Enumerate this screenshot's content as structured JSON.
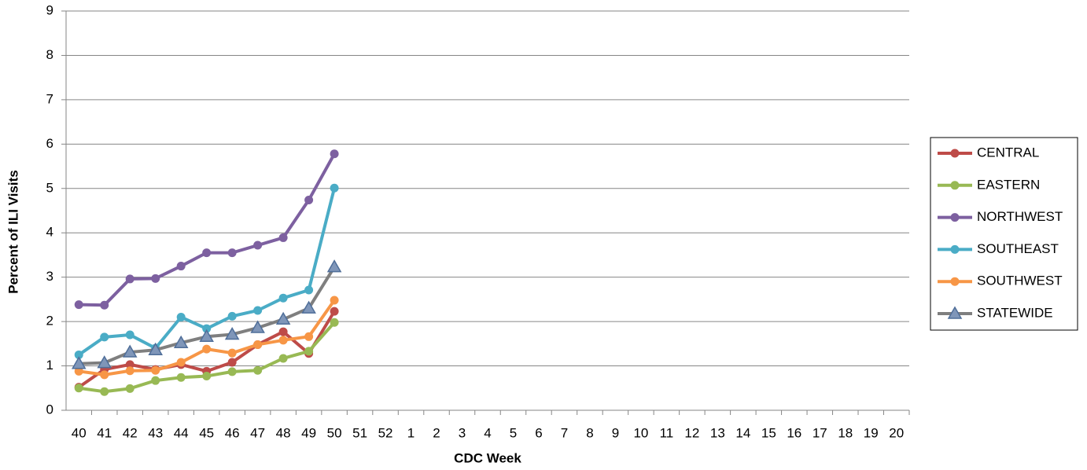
{
  "chart_data": {
    "type": "line",
    "x_label": "CDC Week",
    "y_label": "Percent of ILI Visits",
    "categories": [
      "40",
      "41",
      "42",
      "43",
      "44",
      "45",
      "46",
      "47",
      "48",
      "49",
      "50",
      "51",
      "52",
      "1",
      "2",
      "3",
      "4",
      "5",
      "6",
      "7",
      "8",
      "9",
      "10",
      "11",
      "12",
      "13",
      "14",
      "15",
      "16",
      "17",
      "18",
      "19",
      "20"
    ],
    "series": [
      {
        "name": "CENTRAL",
        "color": "#be4b48",
        "marker": "circle",
        "values": [
          0.52,
          0.92,
          1.03,
          0.92,
          1.03,
          0.88,
          1.08,
          1.48,
          1.77,
          1.28,
          2.23,
          null,
          null,
          null,
          null,
          null,
          null,
          null,
          null,
          null,
          null,
          null,
          null,
          null,
          null,
          null,
          null,
          null,
          null,
          null,
          null,
          null,
          null
        ]
      },
      {
        "name": "EASTERN",
        "color": "#98b954",
        "marker": "circle",
        "values": [
          0.5,
          0.42,
          0.49,
          0.67,
          0.74,
          0.77,
          0.87,
          0.9,
          1.17,
          1.33,
          1.98,
          null,
          null,
          null,
          null,
          null,
          null,
          null,
          null,
          null,
          null,
          null,
          null,
          null,
          null,
          null,
          null,
          null,
          null,
          null,
          null,
          null,
          null
        ]
      },
      {
        "name": "NORTHWEST",
        "color": "#7d60a0",
        "marker": "circle",
        "values": [
          2.38,
          2.37,
          2.96,
          2.97,
          3.25,
          3.55,
          3.55,
          3.72,
          3.89,
          4.74,
          5.78,
          null,
          null,
          null,
          null,
          null,
          null,
          null,
          null,
          null,
          null,
          null,
          null,
          null,
          null,
          null,
          null,
          null,
          null,
          null,
          null,
          null,
          null
        ]
      },
      {
        "name": "SOUTHEAST",
        "color": "#4aacc6",
        "marker": "circle",
        "values": [
          1.25,
          1.65,
          1.7,
          1.4,
          2.1,
          1.84,
          2.12,
          2.25,
          2.53,
          2.71,
          5.01,
          null,
          null,
          null,
          null,
          null,
          null,
          null,
          null,
          null,
          null,
          null,
          null,
          null,
          null,
          null,
          null,
          null,
          null,
          null,
          null,
          null,
          null
        ]
      },
      {
        "name": "SOUTHWEST",
        "color": "#f79646",
        "marker": "circle",
        "values": [
          0.88,
          0.8,
          0.89,
          0.9,
          1.08,
          1.38,
          1.29,
          1.48,
          1.58,
          1.66,
          2.48,
          null,
          null,
          null,
          null,
          null,
          null,
          null,
          null,
          null,
          null,
          null,
          null,
          null,
          null,
          null,
          null,
          null,
          null,
          null,
          null,
          null,
          null
        ]
      },
      {
        "name": "STATEWIDE",
        "color": "#7f7f7f",
        "marker": "triangle",
        "marker_color": "#7f96b9",
        "values": [
          1.05,
          1.07,
          1.31,
          1.36,
          1.52,
          1.66,
          1.71,
          1.86,
          2.05,
          2.3,
          3.23,
          null,
          null,
          null,
          null,
          null,
          null,
          null,
          null,
          null,
          null,
          null,
          null,
          null,
          null,
          null,
          null,
          null,
          null,
          null,
          null,
          null,
          null
        ]
      }
    ],
    "ylim": [
      0,
      9
    ],
    "yticks": [
      0,
      1,
      2,
      3,
      4,
      5,
      6,
      7,
      8,
      9
    ],
    "grid": true,
    "legend": "right"
  }
}
